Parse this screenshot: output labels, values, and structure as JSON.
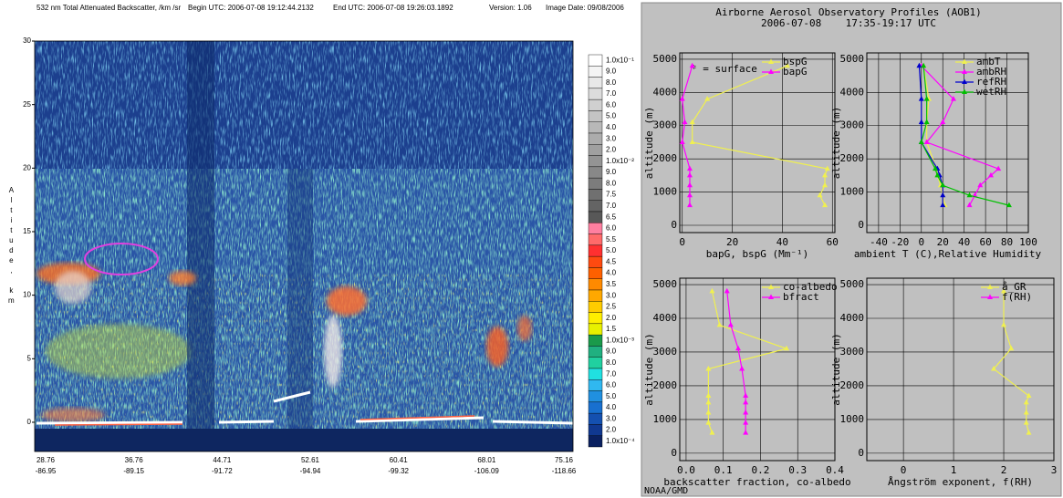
{
  "chart_data": [
    {
      "type": "curtain",
      "title": "532 nm Total Attenuated Backscatter, /km /sr",
      "header": [
        "Begin UTC: 2006-07-08 19:12:44.2132",
        "End UTC: 2006-07-08 19:26:03.1892",
        "Version: 1.06",
        "Image Date: 09/08/2006"
      ],
      "ylabel": "Altitude, km",
      "ylim": [
        -2.3,
        30
      ],
      "yticks": [
        0,
        5,
        10,
        15,
        20,
        25,
        30
      ],
      "xtick_labels": [
        [
          "28.76",
          "-86.95"
        ],
        [
          "36.76",
          "-89.15"
        ],
        [
          "44.71",
          "-91.72"
        ],
        [
          "52.61",
          "-94.94"
        ],
        [
          "60.41",
          "-99.32"
        ],
        [
          "68.01",
          "-106.09"
        ],
        [
          "75.16",
          "-118.66"
        ]
      ],
      "colorbar": [
        {
          "label": "1.0x10⁻¹",
          "color": "#ffffff"
        },
        {
          "label": "9.0",
          "color": "#f4f4f4"
        },
        {
          "label": "8.0",
          "color": "#e8e8e8"
        },
        {
          "label": "7.0",
          "color": "#dcdcdc"
        },
        {
          "label": "6.0",
          "color": "#d0d0d0"
        },
        {
          "label": "5.0",
          "color": "#c4c4c4"
        },
        {
          "label": "4.0",
          "color": "#b8b8b8"
        },
        {
          "label": "3.0",
          "color": "#acacac"
        },
        {
          "label": "2.0",
          "color": "#a0a0a0"
        },
        {
          "label": "1.0x10⁻²",
          "color": "#949494"
        },
        {
          "label": "9.0",
          "color": "#888888"
        },
        {
          "label": "8.0",
          "color": "#7c7c7c"
        },
        {
          "label": "7.5",
          "color": "#707070"
        },
        {
          "label": "7.0",
          "color": "#646464"
        },
        {
          "label": "6.5",
          "color": "#585858"
        },
        {
          "label": "6.0",
          "color": "#ff7fa0"
        },
        {
          "label": "5.5",
          "color": "#ff6a6a"
        },
        {
          "label": "5.0",
          "color": "#ff3030"
        },
        {
          "label": "4.5",
          "color": "#ff4a10"
        },
        {
          "label": "4.0",
          "color": "#ff6000"
        },
        {
          "label": "3.5",
          "color": "#ff8a00"
        },
        {
          "label": "3.0",
          "color": "#ffa800"
        },
        {
          "label": "2.5",
          "color": "#ffcc00"
        },
        {
          "label": "2.0",
          "color": "#ffee00"
        },
        {
          "label": "1.5",
          "color": "#e8f000"
        },
        {
          "label": "1.0x10⁻³",
          "color": "#1a9a4a"
        },
        {
          "label": "9.0",
          "color": "#20b080"
        },
        {
          "label": "8.0",
          "color": "#20d0a0"
        },
        {
          "label": "7.0",
          "color": "#20e0e0"
        },
        {
          "label": "6.0",
          "color": "#30b8f0"
        },
        {
          "label": "5.0",
          "color": "#2090e0"
        },
        {
          "label": "4.0",
          "color": "#1870d0"
        },
        {
          "label": "3.0",
          "color": "#1450b0"
        },
        {
          "label": "2.0",
          "color": "#103890"
        },
        {
          "label": "1.0x10⁻⁴",
          "color": "#0a2060"
        }
      ]
    },
    {
      "type": "profile",
      "ylabel": "altitude (m)",
      "xlabel": "bapG, bspG (Mm⁻¹)",
      "annotation": "* = surface",
      "altitude": [
        4800,
        3800,
        3100,
        2500,
        1700,
        1500,
        1200,
        900,
        600
      ],
      "series": [
        {
          "name": "bspG",
          "color": "#f0f050",
          "values": [
            42,
            10,
            4,
            4,
            58,
            57,
            57,
            55,
            57
          ]
        },
        {
          "name": "bapG",
          "color": "#ff00ff",
          "values": [
            4,
            0,
            1,
            0,
            3,
            3,
            3,
            3,
            3
          ]
        }
      ],
      "xlim": [
        -1,
        61
      ],
      "xticks": [
        0,
        20,
        40,
        60
      ],
      "ylim": [
        -220,
        5190
      ],
      "yticks": [
        0,
        1000,
        2000,
        3000,
        4000,
        5000
      ],
      "grid": true,
      "legend": "upper right"
    },
    {
      "type": "profile",
      "ylabel": "altitude (m)",
      "xlabel": "ambient T (C),Relative Humidity",
      "altitude": [
        4800,
        3800,
        3100,
        2500,
        1700,
        1500,
        1200,
        900,
        600
      ],
      "series": [
        {
          "name": "ambT",
          "color": "#f0f050",
          "values": [
            2,
            7,
            5,
            5,
            14,
            15,
            18,
            20,
            22
          ]
        },
        {
          "name": "ambRH",
          "color": "#ff00ff",
          "values": [
            0,
            30,
            20,
            5,
            72,
            65,
            55,
            50,
            45
          ]
        },
        {
          "name": "refRH",
          "color": "#0000cc",
          "values": [
            -2,
            0,
            0,
            0,
            15,
            17,
            20,
            20,
            20
          ]
        },
        {
          "name": "wetRH",
          "color": "#00c000",
          "values": [
            2,
            5,
            5,
            0,
            13,
            15,
            20,
            45,
            82
          ]
        }
      ],
      "xlim": [
        -51,
        100
      ],
      "xticks": [
        -40,
        -20,
        0,
        20,
        40,
        60,
        80,
        100
      ],
      "ylim": [
        -220,
        5190
      ],
      "yticks": [
        0,
        1000,
        2000,
        3000,
        4000,
        5000
      ],
      "grid": true,
      "legend": "upper right"
    },
    {
      "type": "profile",
      "ylabel": "altitude (m)",
      "xlabel": "backscatter fraction, co-albedo",
      "altitude": [
        4800,
        3800,
        3100,
        2500,
        1700,
        1500,
        1200,
        900,
        600
      ],
      "series": [
        {
          "name": "co-albedo",
          "color": "#f0f050",
          "values": [
            0.07,
            0.09,
            0.27,
            0.06,
            0.06,
            0.06,
            0.06,
            0.06,
            0.07
          ]
        },
        {
          "name": "bfract",
          "color": "#ff00ff",
          "values": [
            0.11,
            0.12,
            0.14,
            0.15,
            0.16,
            0.16,
            0.16,
            0.16,
            0.16
          ]
        }
      ],
      "xlim": [
        -0.017,
        0.4
      ],
      "xticks": [
        {
          "value": 0,
          "label": "0.0"
        },
        0.1,
        0.2,
        0.3,
        0.4
      ],
      "ylim": [
        -220,
        5190
      ],
      "yticks": [
        0,
        1000,
        2000,
        3000,
        4000,
        5000
      ],
      "grid": true,
      "legend": "upper right"
    },
    {
      "type": "profile",
      "ylabel": "altitude (m)",
      "xlabel": "Ångström exponent, f(RH)",
      "altitude": [
        4800,
        3800,
        3100,
        2500,
        1700,
        1500,
        1200,
        900,
        600
      ],
      "series": [
        {
          "name": "å_GR",
          "color": "#f0f050",
          "values": [
            2.0,
            2.0,
            2.15,
            1.8,
            2.5,
            2.45,
            2.45,
            2.45,
            2.5
          ]
        },
        {
          "name": "f(RH)",
          "color": "#ff00ff",
          "values": [
            null,
            null,
            null,
            null,
            null,
            null,
            null,
            null,
            null
          ]
        }
      ],
      "xlim": [
        -0.73,
        3
      ],
      "xticks": [
        0,
        1,
        2,
        3
      ],
      "ylim": [
        -220,
        5190
      ],
      "yticks": [
        0,
        1000,
        2000,
        3000,
        4000,
        5000
      ],
      "grid": true,
      "legend": "upper right"
    }
  ],
  "right_panel": {
    "title": "Airborne Aerosol Observatory Profiles (AOB1)",
    "subtitle": "2006-07-08    17:35-19:17 UTC",
    "footer": "NOAA/GMD"
  }
}
